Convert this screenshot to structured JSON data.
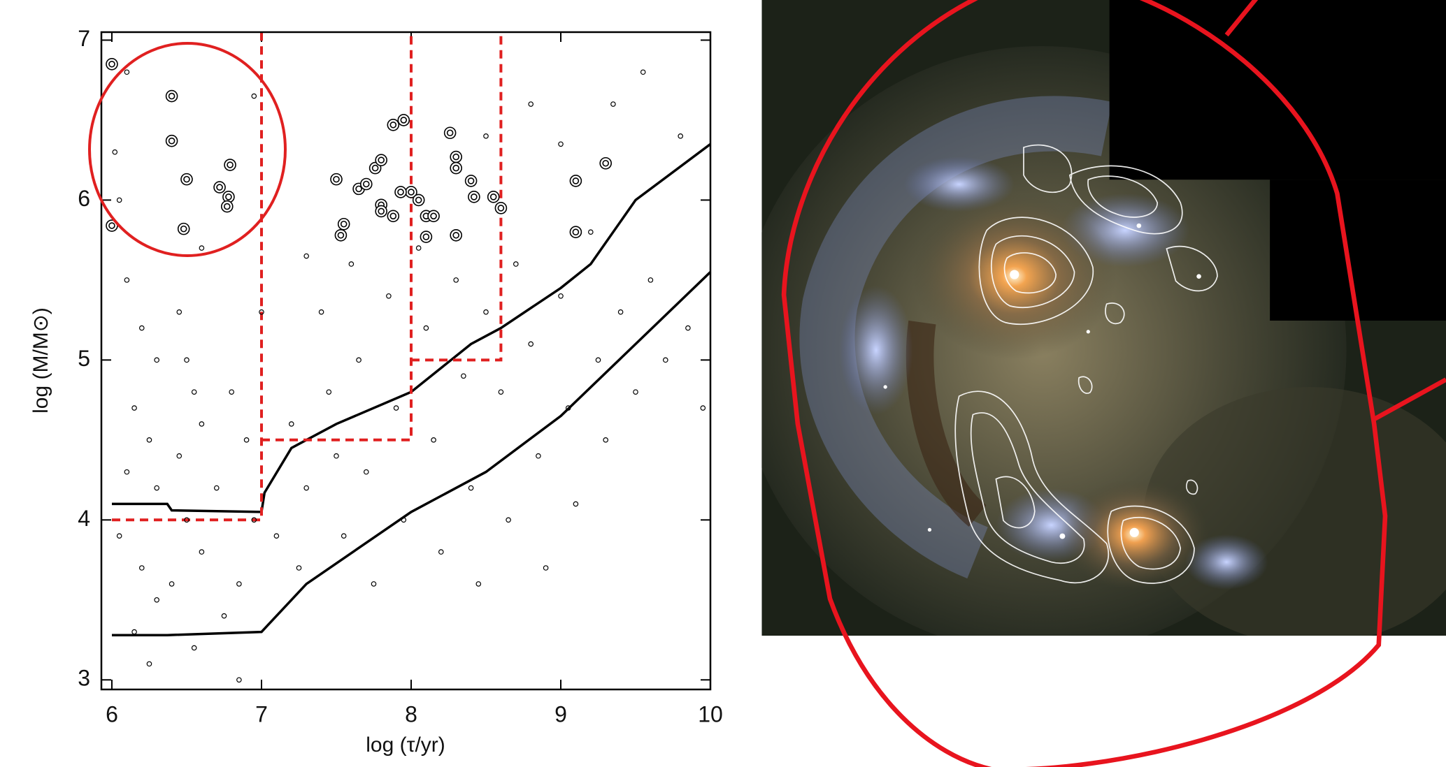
{
  "chart_data": {
    "type": "scatter",
    "xlabel": "log (τ/yr)",
    "ylabel": "log (M/M⊙)",
    "xlim": [
      5.93,
      10
    ],
    "ylim": [
      2.94,
      7.05
    ],
    "xticks": [
      6,
      7,
      8,
      9,
      10
    ],
    "yticks": [
      3,
      4,
      5,
      6,
      7
    ],
    "series": [
      {
        "type": "scatter",
        "marker": "small",
        "color": "#000000",
        "x": [
          6.02,
          6.05,
          6.1,
          6.2,
          6.3,
          6.15,
          6.25,
          6.1,
          6.3,
          6.05,
          6.2,
          6.3,
          6.15,
          6.25,
          6.45,
          6.5,
          6.55,
          6.6,
          6.45,
          6.7,
          6.5,
          6.6,
          6.4,
          6.75,
          6.55,
          6.85,
          6.8,
          6.9,
          6.95,
          6.85,
          7.1,
          7.2,
          7.25,
          7.3,
          7.4,
          7.45,
          7.5,
          7.55,
          7.6,
          7.65,
          7.7,
          7.75,
          7.85,
          7.9,
          7.95,
          8.05,
          8.1,
          8.15,
          8.2,
          8.3,
          8.35,
          8.4,
          8.45,
          8.5,
          8.6,
          8.65,
          8.7,
          8.8,
          8.85,
          8.9,
          9.0,
          9.05,
          9.1,
          9.2,
          9.25,
          9.3,
          9.4,
          9.5,
          9.55,
          9.6,
          9.7,
          9.8,
          9.85,
          9.95,
          8.8,
          9.35,
          8.5,
          9.0,
          7.3,
          6.6,
          6.95,
          7.0,
          6.1
        ],
        "values": [
          6.3,
          6.0,
          5.5,
          5.2,
          5.0,
          4.7,
          4.5,
          4.3,
          4.2,
          3.9,
          3.7,
          3.5,
          3.3,
          3.1,
          5.3,
          5.0,
          4.8,
          4.6,
          4.4,
          4.2,
          4.0,
          3.8,
          3.6,
          3.4,
          3.2,
          3.0,
          4.8,
          4.5,
          4.0,
          3.6,
          3.9,
          4.6,
          3.7,
          4.2,
          5.3,
          4.8,
          4.4,
          3.9,
          5.6,
          5.0,
          4.3,
          3.6,
          5.4,
          4.7,
          4.0,
          5.7,
          5.2,
          4.5,
          3.8,
          5.5,
          4.9,
          4.2,
          3.6,
          5.3,
          4.8,
          4.0,
          5.6,
          5.1,
          4.4,
          3.7,
          5.4,
          4.7,
          4.1,
          5.8,
          5.0,
          4.5,
          5.3,
          4.8,
          6.8,
          5.5,
          5.0,
          6.4,
          5.2,
          4.7,
          6.6,
          6.6,
          6.4,
          6.35,
          5.65,
          5.7,
          6.65,
          5.3,
          6.8
        ]
      },
      {
        "type": "scatter",
        "marker": "double",
        "color": "#000000",
        "x": [
          6.0,
          6.4,
          6.4,
          6.5,
          6.72,
          6.79,
          6.78,
          6.77,
          6.48,
          6.0,
          7.5,
          7.55,
          7.53,
          7.65,
          7.7,
          7.76,
          7.8,
          7.8,
          7.88,
          7.95,
          7.88,
          8.0,
          8.05,
          8.1,
          8.15,
          8.1,
          8.26,
          8.3,
          8.3,
          8.4,
          8.42,
          8.3,
          8.55,
          8.6,
          9.1,
          9.3,
          9.1,
          7.93,
          7.8
        ],
        "values": [
          6.85,
          6.65,
          6.37,
          6.13,
          6.08,
          6.22,
          6.02,
          5.96,
          5.82,
          5.84,
          6.13,
          5.85,
          5.78,
          6.07,
          6.1,
          6.2,
          6.25,
          5.97,
          6.47,
          6.5,
          5.9,
          6.05,
          6.0,
          5.9,
          5.9,
          5.77,
          6.42,
          6.27,
          6.2,
          6.12,
          6.02,
          5.78,
          6.02,
          5.95,
          6.12,
          6.23,
          5.8,
          6.05,
          5.93
        ]
      },
      {
        "type": "line",
        "color": "#000000",
        "x": [
          6.0,
          6.37,
          6.4,
          7.0,
          7.02,
          7.2,
          7.5,
          8.0,
          8.4,
          8.6,
          9.0,
          9.2,
          9.5,
          10.0
        ],
        "values": [
          4.1,
          4.1,
          4.06,
          4.05,
          4.17,
          4.45,
          4.6,
          4.8,
          5.1,
          5.2,
          5.45,
          5.6,
          6.0,
          6.35
        ]
      },
      {
        "type": "line",
        "color": "#000000",
        "x": [
          6.0,
          6.37,
          7.0,
          7.3,
          8.0,
          8.5,
          9.0,
          9.5,
          10.0
        ],
        "values": [
          3.28,
          3.28,
          3.3,
          3.6,
          4.05,
          4.3,
          4.65,
          5.1,
          5.55
        ]
      },
      {
        "type": "line",
        "color": "#e02020",
        "dash": true,
        "x": [
          6.0,
          7.0,
          7.0,
          null,
          7.0,
          8.0,
          8.0,
          null,
          8.0,
          8.6,
          8.6
        ],
        "values": [
          4.0,
          4.0,
          7.05,
          null,
          4.5,
          4.5,
          7.05,
          null,
          5.0,
          5.0,
          7.05
        ]
      }
    ]
  }
}
